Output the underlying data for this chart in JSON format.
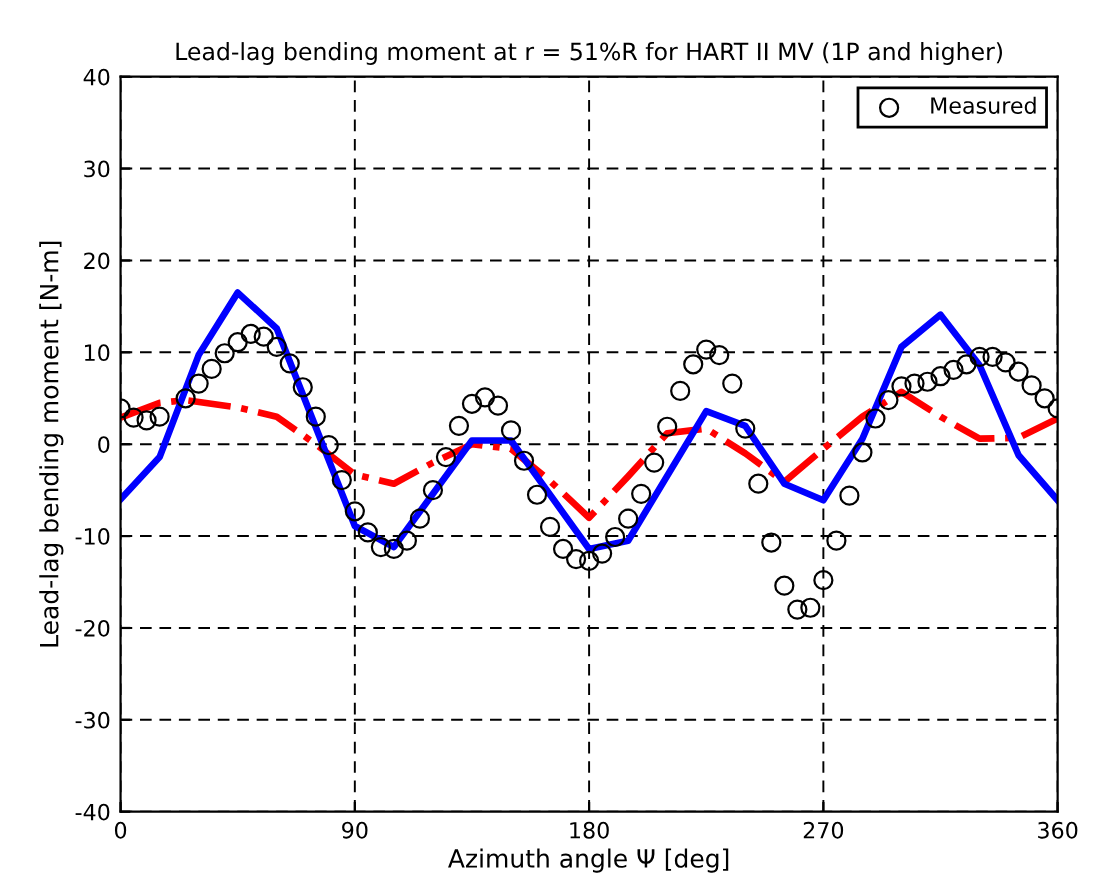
{
  "chart_data": {
    "type": "line",
    "title": "Lead-lag bending moment at r = 51%R for HART II MV (1P and higher)",
    "xlabel": "Azimuth angle Ψ [deg]",
    "ylabel": "Lead-lag bending moment [N-m]",
    "xlim": [
      0,
      360
    ],
    "xticks": [
      0,
      90,
      180,
      270,
      360
    ],
    "ylim": [
      -40,
      40
    ],
    "yticks": [
      -40,
      -30,
      -20,
      -10,
      0,
      10,
      20,
      30,
      40
    ],
    "grid": true,
    "legend": "top right",
    "series": [
      {
        "name": "Measured",
        "type": "scatter",
        "marker": "circle",
        "color": "#000000",
        "x": [
          0,
          5,
          10,
          15,
          25,
          30,
          35,
          40,
          45,
          50,
          55,
          60,
          65,
          70,
          75,
          80,
          85,
          90,
          95,
          100,
          105,
          110,
          115,
          120,
          125,
          130,
          135,
          140,
          145,
          150,
          155,
          160,
          165,
          170,
          175,
          180,
          185,
          190,
          195,
          200,
          205,
          210,
          215,
          220,
          225,
          230,
          235,
          240,
          245,
          250,
          255,
          260,
          265,
          270,
          275,
          280,
          285,
          290,
          295,
          300,
          305,
          310,
          315,
          320,
          325,
          330,
          335,
          340,
          345,
          350,
          355,
          360
        ],
        "values": [
          3.9,
          2.9,
          2.6,
          3.0,
          5.0,
          6.6,
          8.2,
          9.9,
          11.1,
          12.0,
          11.7,
          10.6,
          8.8,
          6.2,
          3.0,
          -0.1,
          -3.9,
          -7.3,
          -9.6,
          -11.2,
          -11.4,
          -10.5,
          -8.1,
          -5.0,
          -1.4,
          2.0,
          4.4,
          5.1,
          4.2,
          1.5,
          -1.8,
          -5.5,
          -9.0,
          -11.4,
          -12.5,
          -12.7,
          -11.9,
          -10.1,
          -8.1,
          -5.4,
          -2.0,
          1.9,
          5.8,
          8.7,
          10.3,
          9.7,
          6.6,
          1.7,
          -4.3,
          -10.7,
          -15.4,
          -18.0,
          -17.8,
          -14.8,
          -10.5,
          -5.6,
          -0.9,
          2.8,
          4.8,
          6.3,
          6.6,
          6.8,
          7.4,
          8.1,
          8.7,
          9.5,
          9.5,
          8.9,
          7.9,
          6.4,
          5.0,
          3.9
        ]
      },
      {
        "line_style": "dashdot",
        "color": "#ff0000",
        "x": [
          0,
          15,
          25,
          45,
          60,
          75,
          90,
          105,
          120,
          135,
          150,
          165,
          180,
          195,
          210,
          225,
          240,
          255,
          270,
          285,
          300,
          315,
          330,
          345,
          360
        ],
        "values": [
          2.9,
          4.5,
          4.8,
          4.0,
          3.0,
          0.0,
          -3.3,
          -4.3,
          -2.0,
          0.0,
          -0.5,
          -4.0,
          -8.0,
          -3.5,
          1.2,
          1.7,
          -1.0,
          -4.1,
          -0.5,
          3.0,
          5.7,
          3.0,
          0.6,
          0.7,
          2.8
        ]
      },
      {
        "line_style": "solid",
        "color": "#0000ff",
        "x": [
          0,
          15,
          30,
          45,
          60,
          90,
          105,
          135,
          150,
          180,
          195,
          225,
          240,
          255,
          270,
          285,
          300,
          315,
          330,
          345,
          360
        ],
        "values": [
          -6.0,
          -1.4,
          9.7,
          16.5,
          12.6,
          -8.9,
          -11.2,
          0.4,
          0.4,
          -11.4,
          -10.5,
          3.6,
          2.0,
          -4.3,
          -6.1,
          0.6,
          10.6,
          14.1,
          8.6,
          -1.2,
          -6.1
        ]
      }
    ]
  }
}
